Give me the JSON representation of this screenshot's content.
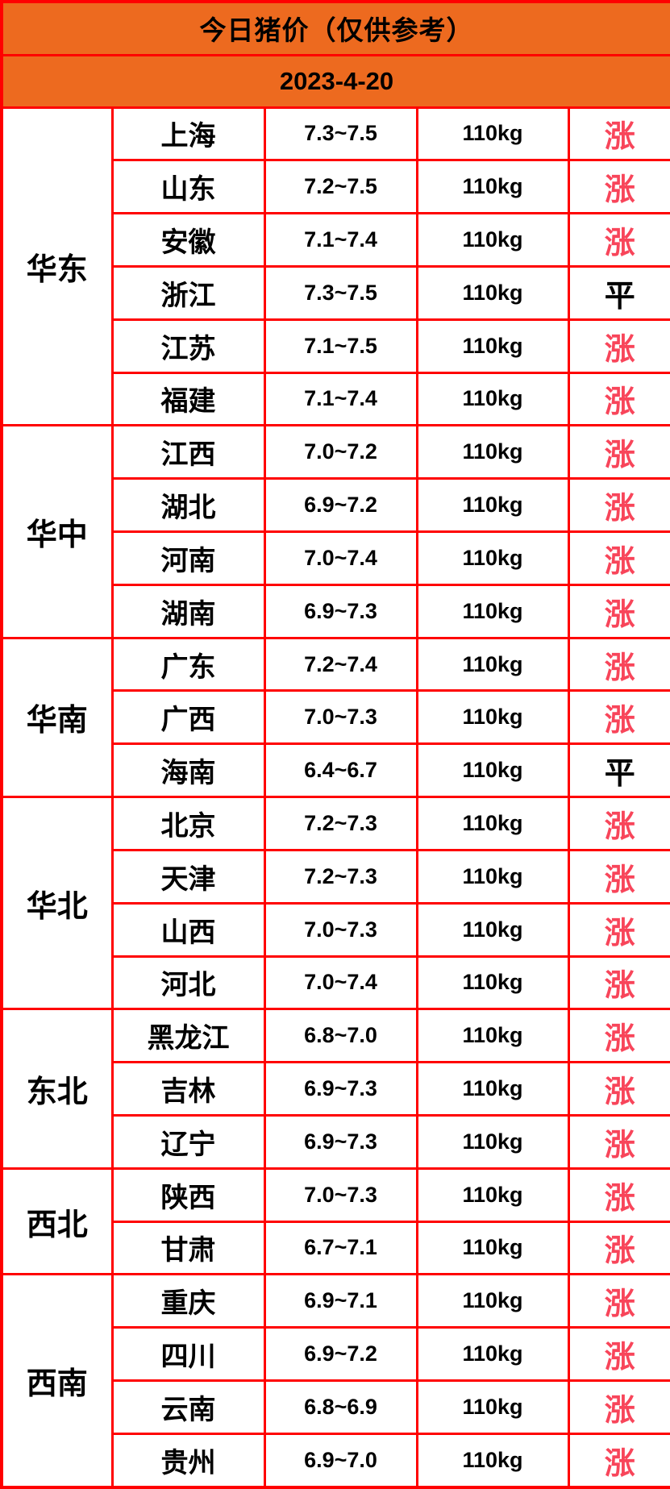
{
  "header": {
    "title": "今日猪价（仅供参考）",
    "date": "2023-4-20"
  },
  "colors": {
    "header_bg": "#ED6A1F",
    "border": "#FF0000",
    "cell_bg": "#FFFFFF",
    "text": "#000000",
    "rise": "#F8455A"
  },
  "trend_labels": {
    "rise": "涨",
    "flat": "平"
  },
  "sections": [
    {
      "region": "华东",
      "rows": [
        {
          "province": "上海",
          "price": "7.3~7.5",
          "weight": "110kg",
          "trend": "涨"
        },
        {
          "province": "山东",
          "price": "7.2~7.5",
          "weight": "110kg",
          "trend": "涨"
        },
        {
          "province": "安徽",
          "price": "7.1~7.4",
          "weight": "110kg",
          "trend": "涨"
        },
        {
          "province": "浙江",
          "price": "7.3~7.5",
          "weight": "110kg",
          "trend": "平"
        },
        {
          "province": "江苏",
          "price": "7.1~7.5",
          "weight": "110kg",
          "trend": "涨"
        },
        {
          "province": "福建",
          "price": "7.1~7.4",
          "weight": "110kg",
          "trend": "涨"
        }
      ]
    },
    {
      "region": "华中",
      "rows": [
        {
          "province": "江西",
          "price": "7.0~7.2",
          "weight": "110kg",
          "trend": "涨"
        },
        {
          "province": "湖北",
          "price": "6.9~7.2",
          "weight": "110kg",
          "trend": "涨"
        },
        {
          "province": "河南",
          "price": "7.0~7.4",
          "weight": "110kg",
          "trend": "涨"
        },
        {
          "province": "湖南",
          "price": "6.9~7.3",
          "weight": "110kg",
          "trend": "涨"
        }
      ]
    },
    {
      "region": "华南",
      "rows": [
        {
          "province": "广东",
          "price": "7.2~7.4",
          "weight": "110kg",
          "trend": "涨"
        },
        {
          "province": "广西",
          "price": "7.0~7.3",
          "weight": "110kg",
          "trend": "涨"
        },
        {
          "province": "海南",
          "price": "6.4~6.7",
          "weight": "110kg",
          "trend": "平"
        }
      ]
    },
    {
      "region": "华北",
      "rows": [
        {
          "province": "北京",
          "price": "7.2~7.3",
          "weight": "110kg",
          "trend": "涨"
        },
        {
          "province": "天津",
          "price": "7.2~7.3",
          "weight": "110kg",
          "trend": "涨"
        },
        {
          "province": "山西",
          "price": "7.0~7.3",
          "weight": "110kg",
          "trend": "涨"
        },
        {
          "province": "河北",
          "price": "7.0~7.4",
          "weight": "110kg",
          "trend": "涨"
        }
      ]
    },
    {
      "region": "东北",
      "rows": [
        {
          "province": "黑龙江",
          "price": "6.8~7.0",
          "weight": "110kg",
          "trend": "涨"
        },
        {
          "province": "吉林",
          "price": "6.9~7.3",
          "weight": "110kg",
          "trend": "涨"
        },
        {
          "province": "辽宁",
          "price": "6.9~7.3",
          "weight": "110kg",
          "trend": "涨"
        }
      ]
    },
    {
      "region": "西北",
      "rows": [
        {
          "province": "陕西",
          "price": "7.0~7.3",
          "weight": "110kg",
          "trend": "涨"
        },
        {
          "province": "甘肃",
          "price": "6.7~7.1",
          "weight": "110kg",
          "trend": "涨"
        }
      ]
    },
    {
      "region": "西南",
      "rows": [
        {
          "province": "重庆",
          "price": "6.9~7.1",
          "weight": "110kg",
          "trend": "涨"
        },
        {
          "province": "四川",
          "price": "6.9~7.2",
          "weight": "110kg",
          "trend": "涨"
        },
        {
          "province": "云南",
          "price": "6.8~6.9",
          "weight": "110kg",
          "trend": "涨"
        },
        {
          "province": "贵州",
          "price": "6.9~7.0",
          "weight": "110kg",
          "trend": "涨"
        }
      ]
    }
  ]
}
